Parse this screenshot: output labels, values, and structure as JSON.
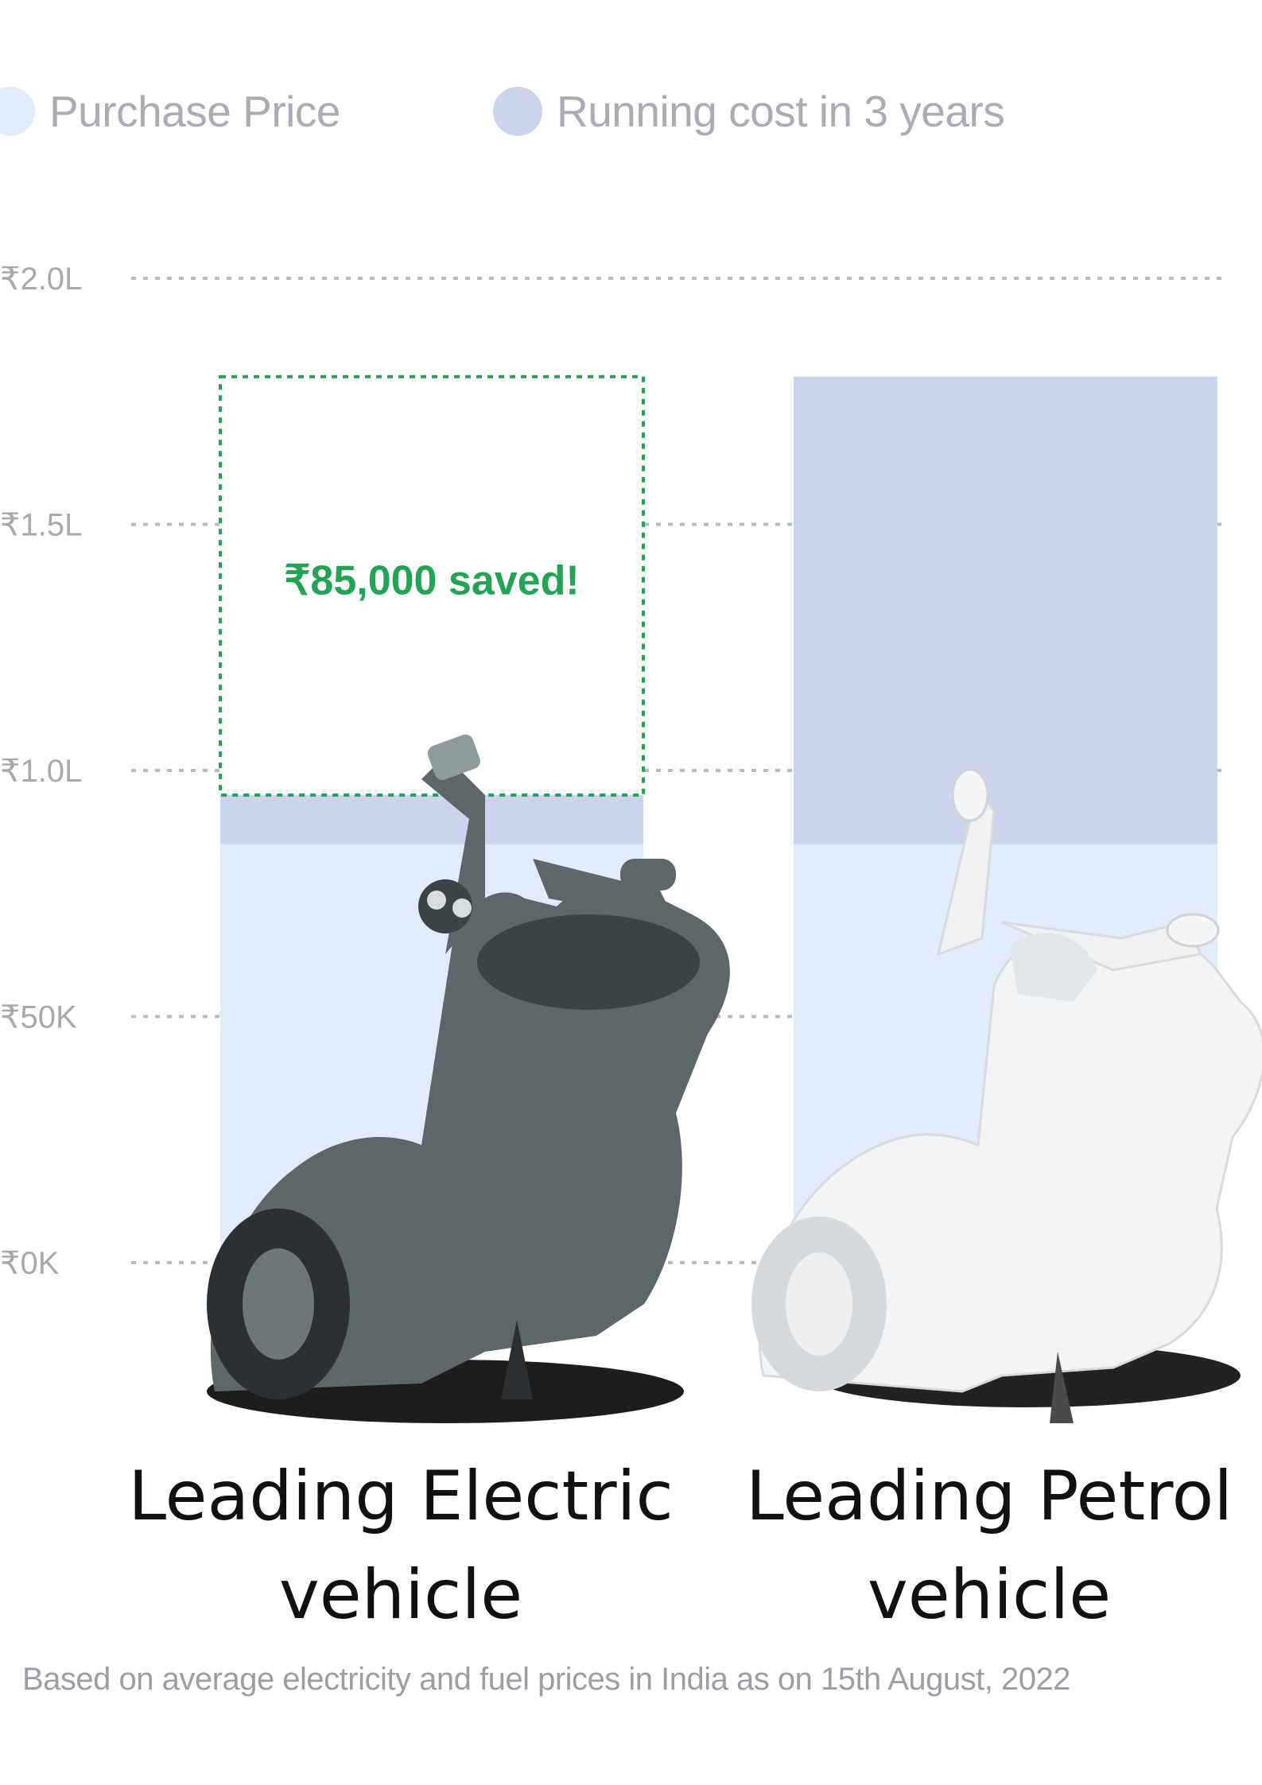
{
  "chart_data": {
    "type": "bar",
    "stacked": true,
    "categories": [
      "Leading Electric vehicle",
      "Leading Petrol vehicle"
    ],
    "category_lines": [
      [
        "Leading Electric",
        "vehicle"
      ],
      [
        "Leading Petrol",
        "vehicle"
      ]
    ],
    "series": [
      {
        "name": "Purchase Price",
        "color": "#e2ebf9",
        "values": [
          85000,
          85000
        ]
      },
      {
        "name": "Running cost in 3 years",
        "color": "#cbd3ed",
        "values": [
          10000,
          95000
        ]
      }
    ],
    "y_ticks": [
      {
        "value": 0,
        "label": "₹0K"
      },
      {
        "value": 50000,
        "label": "₹50K"
      },
      {
        "value": 100000,
        "label": "₹1.0L"
      },
      {
        "value": 150000,
        "label": "₹1.5L"
      },
      {
        "value": 200000,
        "label": "₹2.0L"
      }
    ],
    "ylim": [
      0,
      200000
    ],
    "grid": "dotted",
    "legend_position": "top-left",
    "annotation": {
      "text": "₹85,000 saved!",
      "category_index": 0,
      "from": 95000,
      "to": 180000,
      "color": "#23a455"
    },
    "footnote": "Based on average electricity and fuel prices in India as on 15th August, 2022"
  },
  "images": {
    "electric_scooter": "dark-grey-electric-scooter-icon",
    "petrol_scooter": "white-petrol-scooter-icon"
  }
}
